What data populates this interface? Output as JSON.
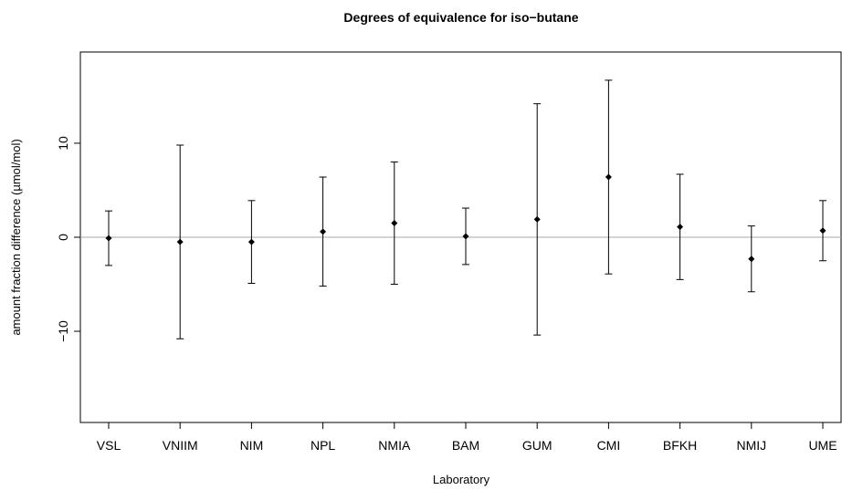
{
  "chart_data": {
    "type": "errorbar",
    "title": "Degrees of equivalence for iso−butane",
    "x_label": "Laboratory",
    "y_label": "amount fraction difference (µmol/mol)",
    "categories": [
      "VSL",
      "VNIIM",
      "NIM",
      "NPL",
      "NMIA",
      "BAM",
      "GUM",
      "CMI",
      "BFKH",
      "NMIJ",
      "UME"
    ],
    "values": [
      -0.1,
      -0.5,
      -0.5,
      0.6,
      1.5,
      0.1,
      1.9,
      6.4,
      1.1,
      -2.3,
      0.7
    ],
    "errors": [
      2.9,
      10.3,
      4.4,
      5.8,
      6.5,
      3.0,
      12.3,
      10.3,
      5.6,
      3.5,
      3.2
    ],
    "color": "#000000",
    "reference_line": 0,
    "ylim": [
      -19.7,
      19.7
    ],
    "yticks": [
      {
        "value": -10,
        "label": "−10"
      },
      0,
      10
    ]
  }
}
